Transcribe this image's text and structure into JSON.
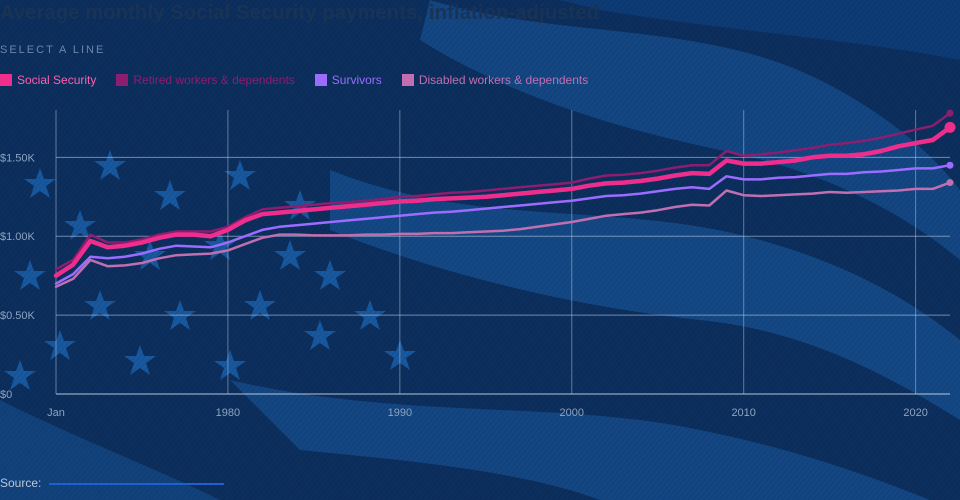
{
  "title": "Average monthly Social Security payments, inflation-adjusted",
  "select_label": "SELECT A LINE",
  "source_label": "Source:",
  "chart_data": {
    "type": "line",
    "title": "Average monthly Social Security payments, inflation-adjusted",
    "xlabel": "",
    "ylabel": "",
    "xlim": [
      1970,
      2022
    ],
    "ylim": [
      0,
      1800
    ],
    "x_ticks": [
      {
        "value": 1970,
        "label": "Jan"
      },
      {
        "value": 1980,
        "label": "1980"
      },
      {
        "value": 1990,
        "label": "1990"
      },
      {
        "value": 2000,
        "label": "2000"
      },
      {
        "value": 2010,
        "label": "2010"
      },
      {
        "value": 2020,
        "label": "2020"
      }
    ],
    "y_ticks": [
      {
        "value": 0,
        "label": "$0"
      },
      {
        "value": 500,
        "label": "$0.50K"
      },
      {
        "value": 1000,
        "label": "$1.00K"
      },
      {
        "value": 1500,
        "label": "$1.50K"
      }
    ],
    "grid": true,
    "legend_position": "top-left",
    "x": [
      1970,
      1971,
      1972,
      1973,
      1974,
      1975,
      1976,
      1977,
      1978,
      1979,
      1980,
      1981,
      1982,
      1983,
      1984,
      1985,
      1986,
      1987,
      1988,
      1989,
      1990,
      1991,
      1992,
      1993,
      1994,
      1995,
      1996,
      1997,
      1998,
      1999,
      2000,
      2001,
      2002,
      2003,
      2004,
      2005,
      2006,
      2007,
      2008,
      2009,
      2010,
      2011,
      2012,
      2013,
      2014,
      2015,
      2016,
      2017,
      2018,
      2019,
      2020,
      2021,
      2022
    ],
    "series": [
      {
        "name": "Social Security",
        "color": "#ee2d8c",
        "highlighted": true,
        "values": [
          750,
          820,
          970,
          930,
          940,
          960,
          990,
          1010,
          1010,
          1000,
          1040,
          1100,
          1140,
          1150,
          1160,
          1170,
          1180,
          1190,
          1200,
          1210,
          1220,
          1225,
          1235,
          1240,
          1245,
          1250,
          1260,
          1270,
          1280,
          1290,
          1300,
          1320,
          1335,
          1340,
          1350,
          1365,
          1385,
          1400,
          1395,
          1480,
          1460,
          1460,
          1470,
          1480,
          1500,
          1510,
          1510,
          1520,
          1540,
          1570,
          1590,
          1610,
          1690
        ]
      },
      {
        "name": "Retired workers & dependents",
        "color": "#8c1d6f",
        "highlighted": false,
        "values": [
          790,
          850,
          1010,
          960,
          960,
          980,
          1010,
          1030,
          1030,
          1030,
          1060,
          1120,
          1170,
          1180,
          1190,
          1200,
          1210,
          1215,
          1225,
          1235,
          1250,
          1255,
          1265,
          1275,
          1280,
          1290,
          1300,
          1310,
          1320,
          1330,
          1340,
          1365,
          1385,
          1390,
          1400,
          1415,
          1435,
          1450,
          1450,
          1540,
          1510,
          1520,
          1530,
          1545,
          1560,
          1580,
          1590,
          1605,
          1625,
          1650,
          1675,
          1700,
          1780
        ]
      },
      {
        "name": "Survivors",
        "color": "#9b6cff",
        "highlighted": false,
        "values": [
          700,
          760,
          870,
          860,
          870,
          890,
          920,
          940,
          935,
          930,
          960,
          1000,
          1040,
          1060,
          1070,
          1080,
          1090,
          1100,
          1110,
          1120,
          1130,
          1140,
          1150,
          1155,
          1165,
          1175,
          1185,
          1195,
          1205,
          1215,
          1225,
          1240,
          1255,
          1260,
          1270,
          1285,
          1300,
          1310,
          1300,
          1380,
          1360,
          1360,
          1370,
          1375,
          1385,
          1395,
          1395,
          1405,
          1410,
          1420,
          1430,
          1430,
          1450
        ]
      },
      {
        "name": "Disabled workers & dependents",
        "color": "#c16fb0",
        "highlighted": false,
        "values": [
          680,
          730,
          850,
          810,
          815,
          830,
          860,
          880,
          885,
          890,
          910,
          950,
          990,
          1010,
          1010,
          1005,
          1005,
          1005,
          1010,
          1010,
          1015,
          1015,
          1020,
          1020,
          1025,
          1030,
          1035,
          1045,
          1060,
          1075,
          1090,
          1110,
          1130,
          1140,
          1150,
          1165,
          1185,
          1200,
          1195,
          1290,
          1260,
          1255,
          1260,
          1265,
          1270,
          1280,
          1275,
          1280,
          1285,
          1290,
          1300,
          1300,
          1340
        ]
      }
    ]
  }
}
